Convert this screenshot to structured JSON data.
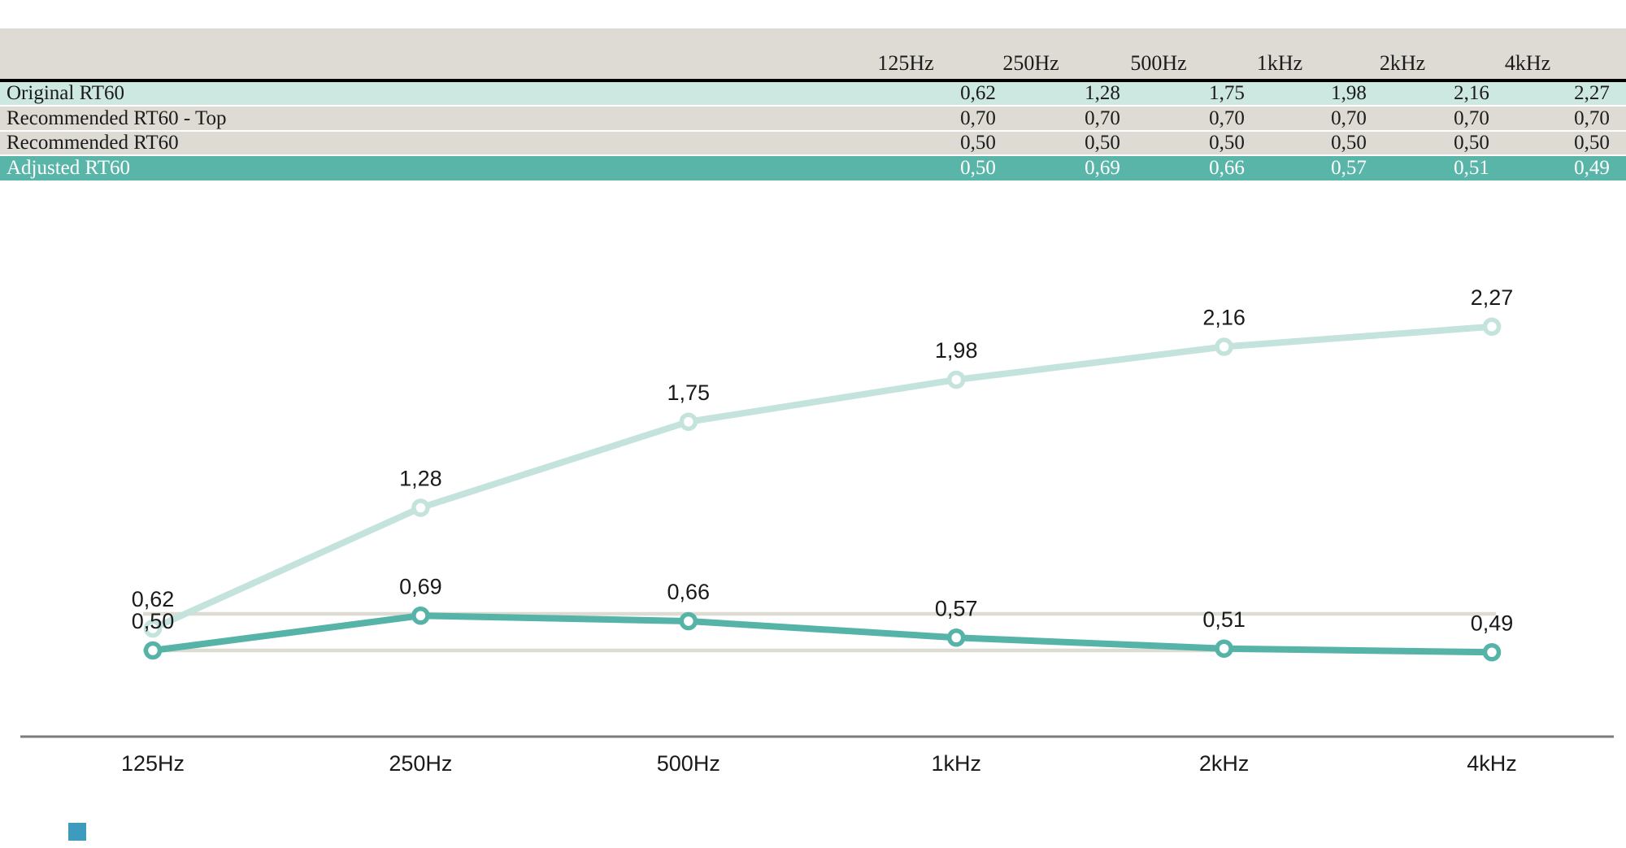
{
  "table": {
    "columns": [
      "125Hz",
      "250Hz",
      "500Hz",
      "1kHz",
      "2kHz",
      "4kHz"
    ],
    "rows": [
      {
        "label": "Original RT60",
        "values": [
          "0,62",
          "1,28",
          "1,75",
          "1,98",
          "2,16",
          "2,27"
        ]
      },
      {
        "label": "Recommended RT60 - Top",
        "values": [
          "0,70",
          "0,70",
          "0,70",
          "0,70",
          "0,70",
          "0,70"
        ]
      },
      {
        "label": "Recommended RT60",
        "values": [
          "0,50",
          "0,50",
          "0,50",
          "0,50",
          "0,50",
          "0,50"
        ]
      },
      {
        "label": "Adjusted RT60",
        "values": [
          "0,50",
          "0,69",
          "0,66",
          "0,57",
          "0,51",
          "0,49"
        ]
      }
    ],
    "colors": {
      "header_band": "#dedbd4",
      "original_row": "#cde7e1",
      "recommended_rows": "#dedbd4",
      "adjusted_row": "#5ab5a9",
      "header_rule": "#000000"
    }
  },
  "chart_data": {
    "type": "line",
    "categories": [
      "125Hz",
      "250Hz",
      "500Hz",
      "1kHz",
      "2kHz",
      "4kHz"
    ],
    "series": [
      {
        "name": "Original RT60",
        "values": [
          0.62,
          1.28,
          1.75,
          1.98,
          2.16,
          2.27
        ],
        "point_labels": [
          "0,62",
          "1,28",
          "1,75",
          "1,98",
          "2,16",
          "2,27"
        ],
        "color": "#c4e3dc",
        "markers": true,
        "labeled": true
      },
      {
        "name": "Recommended RT60 - Top",
        "values": [
          0.7,
          0.7,
          0.7,
          0.7,
          0.7,
          0.7
        ],
        "color": "#dedbd2",
        "markers": false,
        "labeled": false
      },
      {
        "name": "Recommended RT60",
        "values": [
          0.5,
          0.5,
          0.5,
          0.5,
          0.5,
          0.5
        ],
        "color": "#dedbd2",
        "markers": false,
        "labeled": false
      },
      {
        "name": "Adjusted RT60",
        "values": [
          0.5,
          0.69,
          0.66,
          0.57,
          0.51,
          0.49
        ],
        "point_labels": [
          "0,50",
          "0,69",
          "0,66",
          "0,57",
          "0,51",
          "0,49"
        ],
        "color": "#56b3a7",
        "markers": true,
        "labeled": true
      }
    ],
    "title": "",
    "xlabel": "",
    "ylabel": "",
    "ylim": [
      0,
      2.85
    ],
    "grid": false,
    "legend": "none",
    "y_axis_visible": false,
    "axis_color": "#7d7d7d",
    "label_color": "#1a1a1a"
  },
  "decor": {
    "bottom_left_square_color": "#3d9bbd"
  }
}
